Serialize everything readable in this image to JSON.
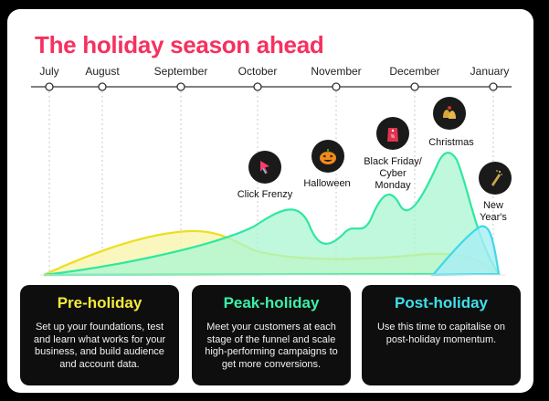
{
  "title": "The holiday season ahead",
  "months": [
    "July",
    "August",
    "September",
    "October",
    "November",
    "December",
    "January"
  ],
  "events": [
    {
      "label": "Click Frenzy",
      "icon": "cursor-arrow-icon"
    },
    {
      "label": "Halloween",
      "icon": "pumpkin-icon"
    },
    {
      "label": "Black Friday/\nCyber\nMonday",
      "icon": "shopping-tag-icon"
    },
    {
      "label": "Christmas",
      "icon": "bells-icon"
    },
    {
      "label": "New\nYear's",
      "icon": "champagne-icon"
    }
  ],
  "phases": [
    {
      "title": "Pre-holiday",
      "color": "#f5ea3a",
      "text": "Set up your foundations, test and learn what works for your business, and build audience and account data."
    },
    {
      "title": "Peak-holiday",
      "color": "#3cf0a8",
      "text": "Meet your customers at each stage of the funnel and scale high-performing campaigns to get more conversions."
    },
    {
      "title": "Post-holiday",
      "color": "#3fe0ea",
      "text": "Use this time to capitalise on post-holiday momentum."
    }
  ],
  "colors": {
    "title": "#f5315f",
    "pre": "#f5ea3a",
    "peak": "#2ee8a0",
    "post": "#3fd8ea"
  }
}
